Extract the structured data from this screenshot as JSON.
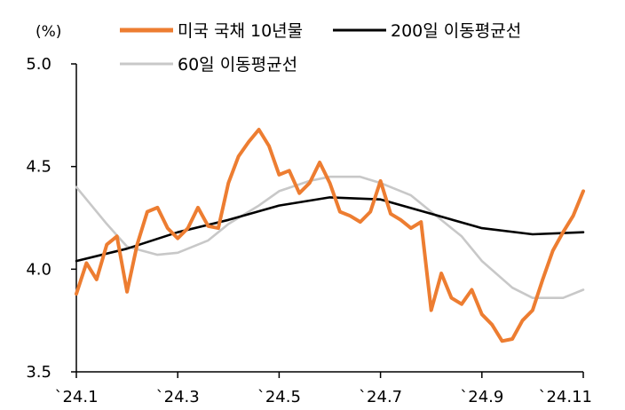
{
  "chart_data": {
    "type": "line",
    "ylabel": "(%)",
    "ylim": [
      3.5,
      5.0
    ],
    "y_ticks": [
      "5.0",
      "4.5",
      "4.0",
      "3.5"
    ],
    "x_ticks": [
      "`24.1",
      "`24.3",
      "`24.5",
      "`24.7",
      "`24.9",
      "`24.11"
    ],
    "grid": false,
    "legend_position": "top",
    "series": [
      {
        "name": "미국 국채 10년물",
        "color": "#ED7D31",
        "x": [
          0,
          1,
          2,
          3,
          4,
          5,
          6,
          7,
          8,
          9,
          10,
          11,
          12,
          13,
          14,
          15,
          16,
          17,
          18,
          19,
          20,
          21,
          22,
          23,
          24,
          25,
          26,
          27,
          28,
          29,
          30,
          31,
          32,
          33,
          34,
          35,
          36,
          37,
          38,
          39,
          40,
          41,
          42,
          43,
          44,
          45,
          46,
          47,
          48,
          49,
          50
        ],
        "values": [
          3.88,
          4.03,
          3.95,
          4.12,
          4.16,
          3.89,
          4.12,
          4.28,
          4.3,
          4.2,
          4.15,
          4.2,
          4.3,
          4.21,
          4.2,
          4.42,
          4.55,
          4.62,
          4.68,
          4.6,
          4.46,
          4.48,
          4.37,
          4.42,
          4.52,
          4.42,
          4.28,
          4.26,
          4.23,
          4.28,
          4.43,
          4.27,
          4.24,
          4.2,
          4.23,
          3.8,
          3.98,
          3.86,
          3.83,
          3.9,
          3.78,
          3.73,
          3.65,
          3.66,
          3.75,
          3.8,
          3.95,
          4.09,
          4.18,
          4.26,
          4.38
        ]
      },
      {
        "name": "200일 이동평균선",
        "color": "#000000",
        "x": [
          0,
          5,
          10,
          15,
          20,
          25,
          30,
          35,
          40,
          45,
          50
        ],
        "values": [
          4.04,
          4.1,
          4.18,
          4.24,
          4.31,
          4.35,
          4.34,
          4.27,
          4.2,
          4.17,
          4.18
        ]
      },
      {
        "name": "60일 이동평균선",
        "color": "#C8C8C8",
        "x": [
          0,
          3,
          5,
          8,
          10,
          13,
          15,
          18,
          20,
          23,
          25,
          28,
          30,
          33,
          35,
          38,
          40,
          43,
          45,
          48,
          50
        ],
        "values": [
          4.4,
          4.22,
          4.11,
          4.07,
          4.08,
          4.14,
          4.22,
          4.31,
          4.38,
          4.43,
          4.45,
          4.45,
          4.42,
          4.36,
          4.28,
          4.16,
          4.04,
          3.91,
          3.86,
          3.86,
          3.9
        ]
      }
    ]
  }
}
